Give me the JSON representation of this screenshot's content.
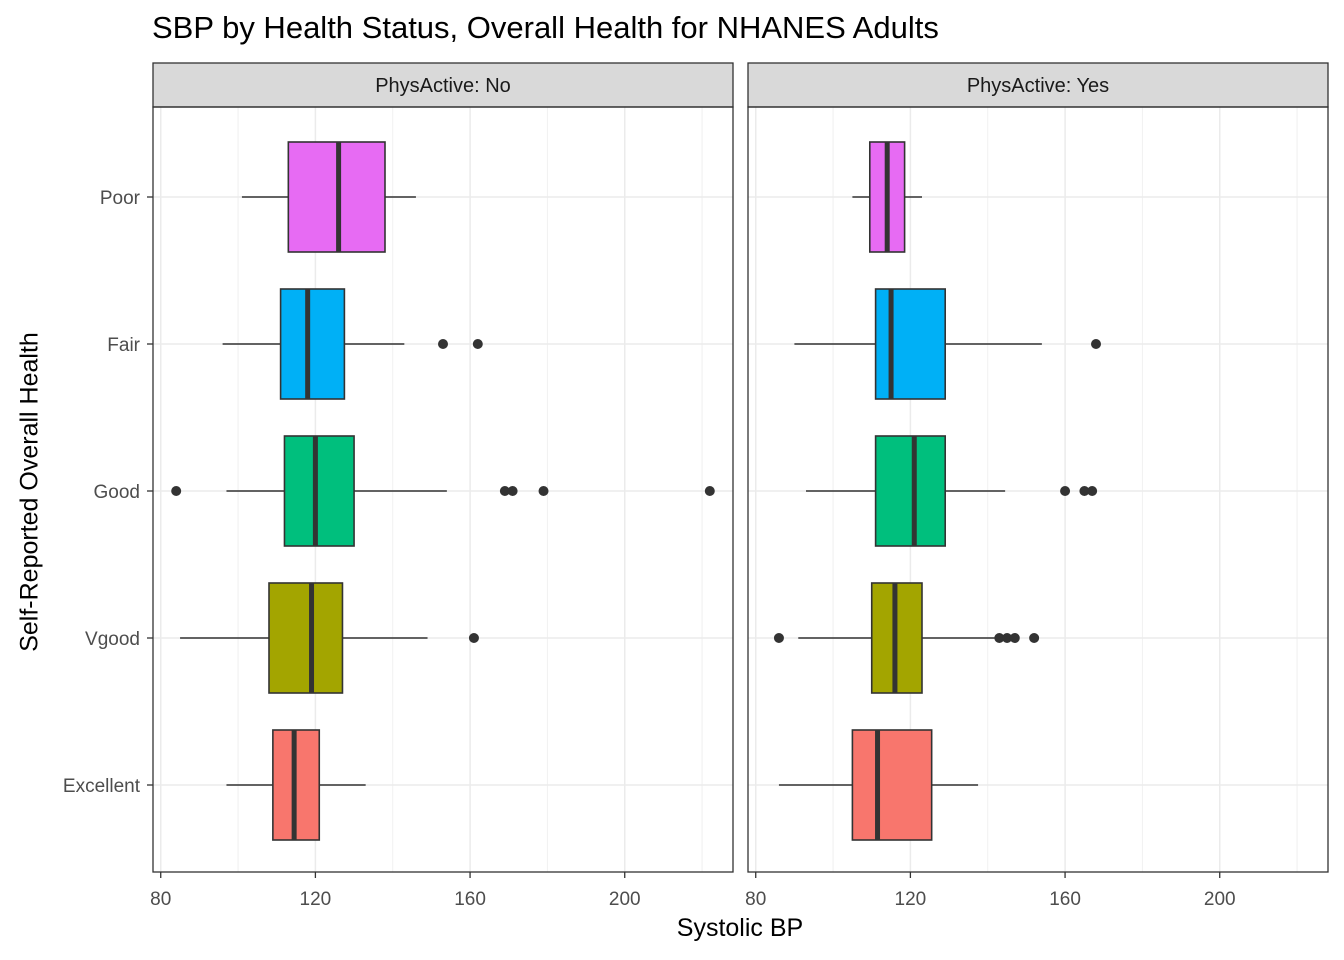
{
  "chart_data": {
    "type": "boxplot",
    "title": "SBP by Health Status, Overall Health for NHANES Adults",
    "xlabel": "Systolic BP",
    "ylabel": "Self-Reported Overall Health",
    "xlim": [
      78,
      228
    ],
    "x_ticks": [
      80,
      120,
      160,
      200
    ],
    "categories": [
      "Excellent",
      "Vgood",
      "Good",
      "Fair",
      "Poor"
    ],
    "category_colors": {
      "Excellent": "#F8766D",
      "Vgood": "#A3A500",
      "Good": "#00BF7D",
      "Fair": "#00B0F6",
      "Poor": "#E76BF3"
    },
    "grid": true,
    "legend": "none",
    "panels": [
      {
        "label": "PhysActive: No",
        "boxes": [
          {
            "category": "Excellent",
            "whisker_low": 97,
            "q1": 109,
            "median": 114.5,
            "q3": 121,
            "whisker_high": 133,
            "outliers": []
          },
          {
            "category": "Vgood",
            "whisker_low": 85,
            "q1": 108,
            "median": 119,
            "q3": 127,
            "whisker_high": 149,
            "outliers": [
              161
            ]
          },
          {
            "category": "Good",
            "whisker_low": 97,
            "q1": 112,
            "median": 120,
            "q3": 130,
            "whisker_high": 154,
            "outliers": [
              84,
              169,
              171,
              179,
              222
            ]
          },
          {
            "category": "Fair",
            "whisker_low": 96,
            "q1": 111,
            "median": 118,
            "q3": 127.5,
            "whisker_high": 143,
            "outliers": [
              153,
              162
            ]
          },
          {
            "category": "Poor",
            "whisker_low": 101,
            "q1": 113,
            "median": 126,
            "q3": 138,
            "whisker_high": 146,
            "outliers": []
          }
        ]
      },
      {
        "label": "PhysActive: Yes",
        "boxes": [
          {
            "category": "Excellent",
            "whisker_low": 86,
            "q1": 105,
            "median": 111.5,
            "q3": 125.5,
            "whisker_high": 137.5,
            "outliers": []
          },
          {
            "category": "Vgood",
            "whisker_low": 91,
            "q1": 110,
            "median": 116,
            "q3": 123,
            "whisker_high": 142,
            "outliers": [
              86,
              143,
              145,
              147,
              152
            ]
          },
          {
            "category": "Good",
            "whisker_low": 93,
            "q1": 111,
            "median": 121,
            "q3": 129,
            "whisker_high": 144.5,
            "outliers": [
              160,
              165,
              167
            ]
          },
          {
            "category": "Fair",
            "whisker_low": 90,
            "q1": 111,
            "median": 115,
            "q3": 129,
            "whisker_high": 154,
            "outliers": [
              168
            ]
          },
          {
            "category": "Poor",
            "whisker_low": 105,
            "q1": 109.5,
            "median": 114,
            "q3": 118.5,
            "whisker_high": 123,
            "outliers": []
          }
        ]
      }
    ]
  }
}
